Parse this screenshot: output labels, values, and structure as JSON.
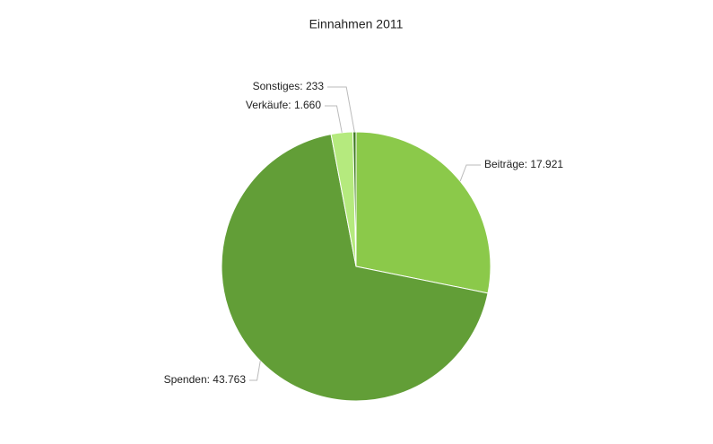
{
  "chart_data": {
    "type": "pie",
    "title": "Einnahmen 2011",
    "values": [
      17921,
      43763,
      1660,
      233
    ],
    "value_labels": [
      "Beiträge: 17.921",
      "Spenden: 43.763",
      "Verkäufe: 1.660",
      "Sonstiges: 233"
    ],
    "colors": [
      "#8bc94a",
      "#629e37",
      "#b5ea7e",
      "#3d7a1e"
    ]
  }
}
